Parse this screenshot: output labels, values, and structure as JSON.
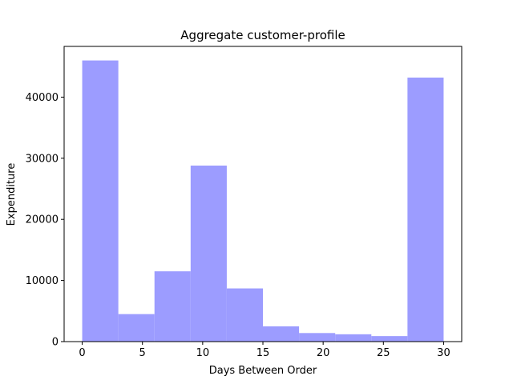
{
  "chart_data": {
    "type": "bar",
    "title": "Aggregate customer-profile",
    "xlabel": "Days Between Order",
    "ylabel": "Expenditure",
    "bar_color": "#9c9cff",
    "xlim": [
      -1.5,
      31.5
    ],
    "ylim": [
      0,
      48300
    ],
    "xticks": [
      0,
      5,
      10,
      15,
      20,
      25,
      30
    ],
    "yticks": [
      0,
      10000,
      20000,
      30000,
      40000
    ],
    "bins": [
      {
        "x0": 0,
        "x1": 3,
        "value": 46000
      },
      {
        "x0": 3,
        "x1": 6,
        "value": 4500
      },
      {
        "x0": 6,
        "x1": 9,
        "value": 11500
      },
      {
        "x0": 9,
        "x1": 12,
        "value": 28800
      },
      {
        "x0": 12,
        "x1": 15,
        "value": 8700
      },
      {
        "x0": 15,
        "x1": 18,
        "value": 2500
      },
      {
        "x0": 18,
        "x1": 21,
        "value": 1400
      },
      {
        "x0": 21,
        "x1": 24,
        "value": 1200
      },
      {
        "x0": 24,
        "x1": 27,
        "value": 900
      },
      {
        "x0": 27,
        "x1": 30,
        "value": 43200
      }
    ]
  }
}
